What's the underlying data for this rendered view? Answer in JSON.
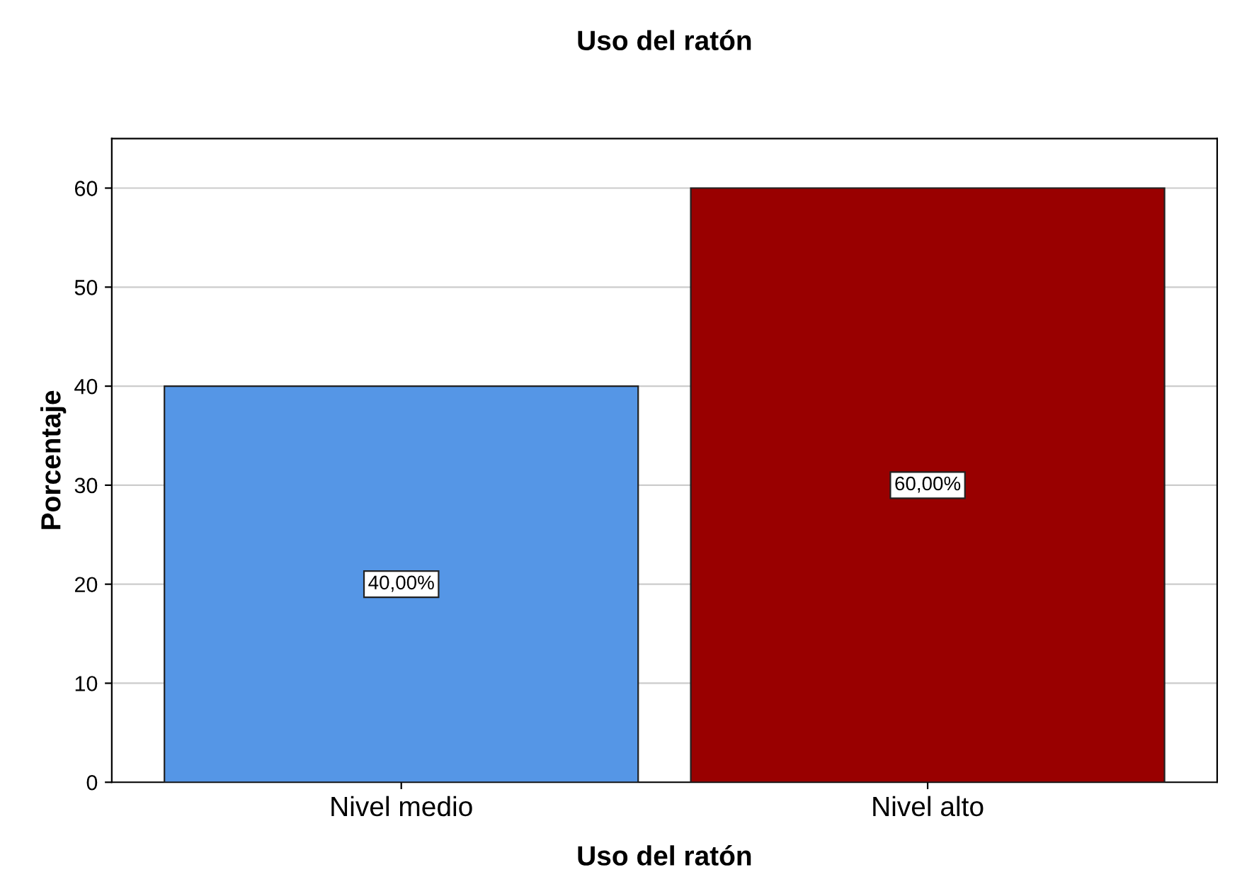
{
  "chart_data": {
    "type": "bar",
    "title": "Uso del ratón",
    "xlabel": "Uso del ratón",
    "ylabel": "Porcentaje",
    "categories": [
      "Nivel medio",
      "Nivel alto"
    ],
    "values": [
      40,
      60
    ],
    "colors": [
      "#5596e6",
      "#990000"
    ],
    "value_labels": [
      "40,00%",
      "60,00%"
    ],
    "ylim": [
      0,
      65
    ],
    "yticks": [
      0,
      10,
      20,
      30,
      40,
      50,
      60
    ],
    "grid": "y"
  }
}
